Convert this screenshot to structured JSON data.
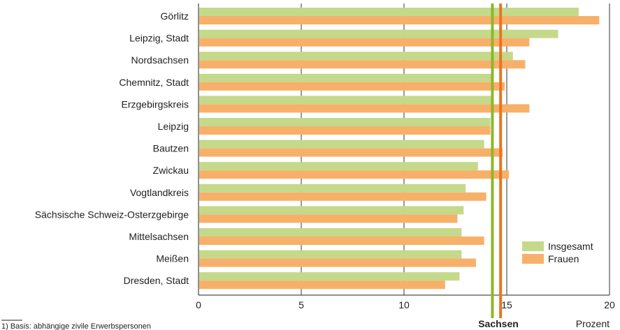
{
  "chart_data": {
    "type": "bar",
    "orientation": "horizontal",
    "categories": [
      "Görlitz",
      "Leipzig, Stadt",
      "Nordsachsen",
      "Chemnitz, Stadt",
      "Erzgebirgskreis",
      "Leipzig",
      "Bautzen",
      "Zwickau",
      "Vogtlandkreis",
      "Sächsische Schweiz-Osterzgebirge",
      "Mittelsachsen",
      "Meißen",
      "Dresden, Stadt"
    ],
    "series": [
      {
        "name": "Insgesamt",
        "color": "#c5d98a",
        "values": [
          18.5,
          17.5,
          15.3,
          14.3,
          14.3,
          14.2,
          13.9,
          13.6,
          13.0,
          12.9,
          12.8,
          12.8,
          12.7
        ]
      },
      {
        "name": "Frauen",
        "color": "#f7b06a",
        "values": [
          19.5,
          16.1,
          15.9,
          14.9,
          16.1,
          14.2,
          14.8,
          15.1,
          14.0,
          12.6,
          13.9,
          13.5,
          12.0
        ]
      }
    ],
    "reference_lines": [
      {
        "series": "Insgesamt",
        "value": 14.3,
        "color": "#8cb82a"
      },
      {
        "series": "Frauen",
        "value": 14.7,
        "color": "#e8761e"
      }
    ],
    "reference_label": "Sachsen",
    "xlim": [
      0,
      20
    ],
    "xticks": [
      0,
      5,
      10,
      15,
      20
    ],
    "xunit": "Prozent",
    "grid": "vertical",
    "legend": "bottom-right",
    "footnote": "1) Basis: abhängige zivile Erwerbspersonen"
  }
}
